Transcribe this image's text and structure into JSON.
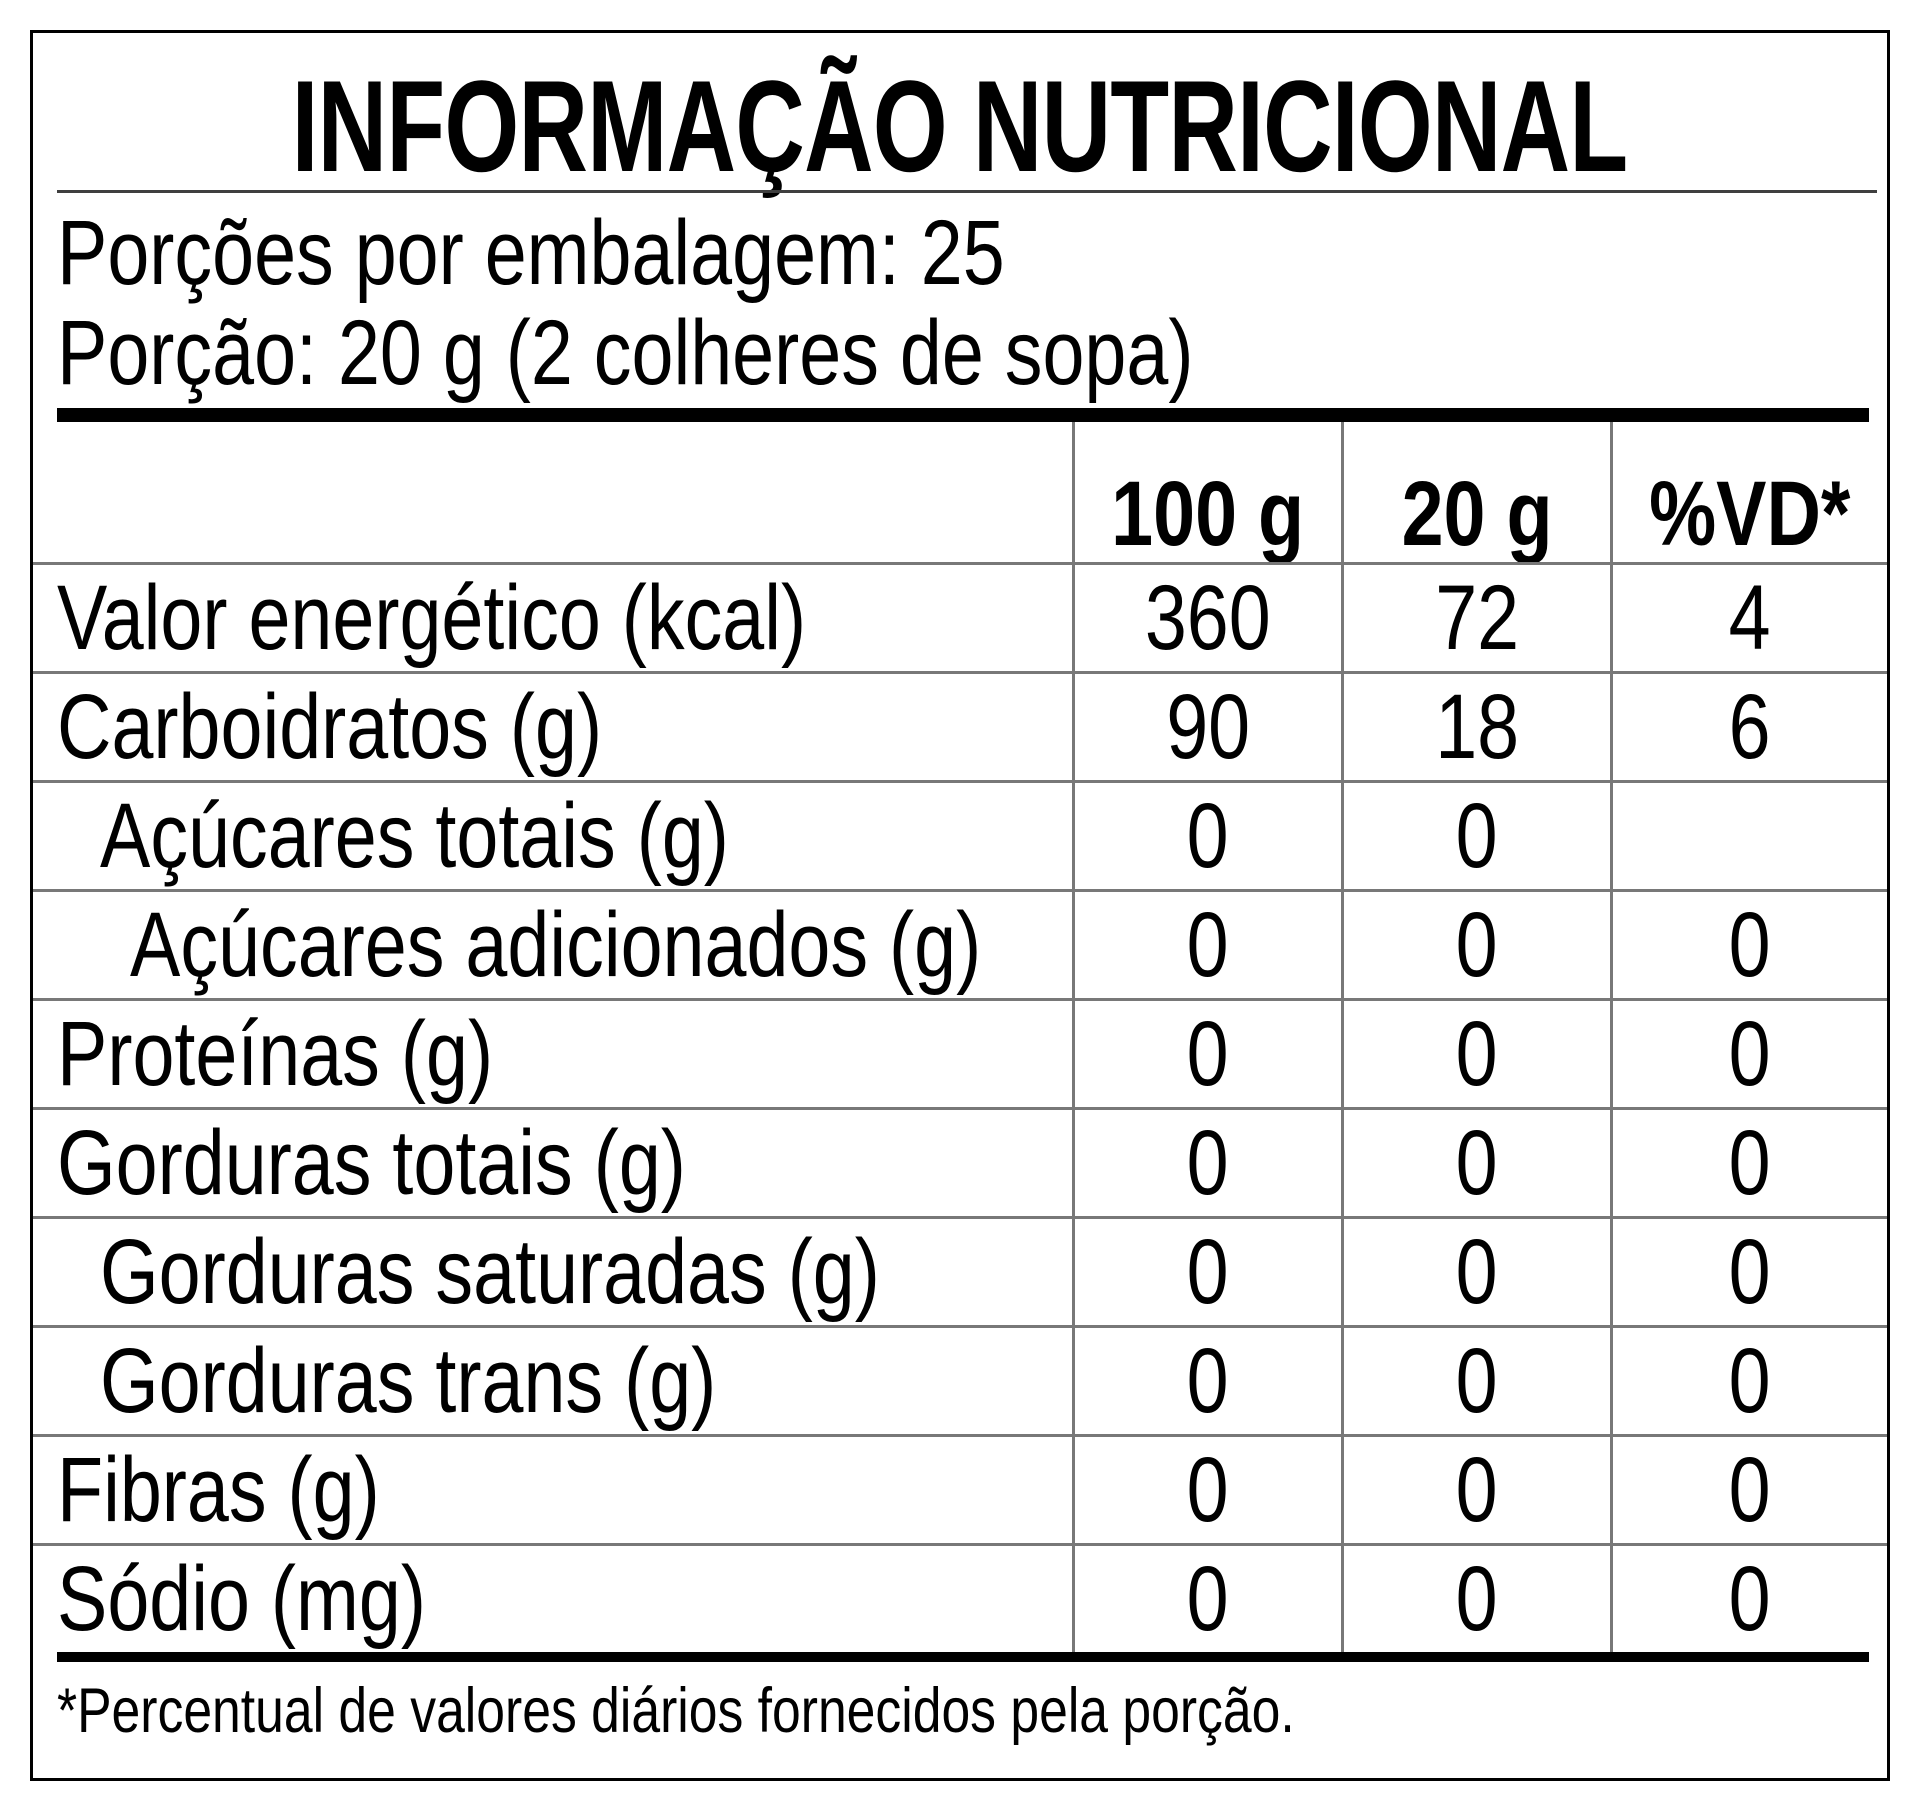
{
  "label": {
    "title": "INFORMAÇÃO NUTRICIONAL",
    "servings_line": "Porções por embalagem: 25",
    "portion_line": "Porção: 20 g (2 colheres de sopa)",
    "columns": [
      "100 g",
      "20 g",
      "%VD*"
    ],
    "rows": [
      {
        "name": "Valor energético (kcal)",
        "indent": 0,
        "per_100g": "360",
        "per_portion": "72",
        "percent_dv": "4"
      },
      {
        "name": "Carboidratos (g)",
        "indent": 0,
        "per_100g": "90",
        "per_portion": "18",
        "percent_dv": "6"
      },
      {
        "name": "Açúcares totais (g)",
        "indent": 1,
        "per_100g": "0",
        "per_portion": "0",
        "percent_dv": ""
      },
      {
        "name": "Açúcares adicionados (g)",
        "indent": 2,
        "per_100g": "0",
        "per_portion": "0",
        "percent_dv": "0"
      },
      {
        "name": "Proteínas (g)",
        "indent": 0,
        "per_100g": "0",
        "per_portion": "0",
        "percent_dv": "0"
      },
      {
        "name": "Gorduras totais (g)",
        "indent": 0,
        "per_100g": "0",
        "per_portion": "0",
        "percent_dv": "0"
      },
      {
        "name": "Gorduras saturadas (g)",
        "indent": 1,
        "per_100g": "0",
        "per_portion": "0",
        "percent_dv": "0"
      },
      {
        "name": "Gorduras trans (g)",
        "indent": 1,
        "per_100g": "0",
        "per_portion": "0",
        "percent_dv": "0"
      },
      {
        "name": "Fibras (g)",
        "indent": 0,
        "per_100g": "0",
        "per_portion": "0",
        "percent_dv": "0"
      },
      {
        "name": "Sódio (mg)",
        "indent": 0,
        "per_100g": "0",
        "per_portion": "0",
        "percent_dv": "0"
      }
    ],
    "footnote": "*Percentual de valores diários fornecidos pela porção.",
    "colors": {
      "text": "#000000",
      "background": "#ffffff",
      "border": "#000000",
      "grid_line": "#787878",
      "thick_bar": "#000000"
    }
  }
}
